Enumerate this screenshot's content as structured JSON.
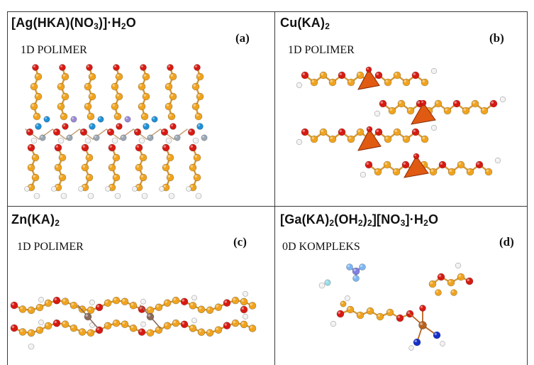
{
  "panels": [
    {
      "id": "a",
      "formula_parts": [
        "[Ag(HKA)(NO",
        "3",
        ")]·H",
        "2",
        "O"
      ],
      "dimensionality": "1D POLIMER",
      "tag": "(a)"
    },
    {
      "id": "b",
      "formula_parts": [
        "Cu(KA)",
        "2"
      ],
      "dimensionality": "1D POLIMER",
      "tag": "(b)"
    },
    {
      "id": "c",
      "formula_parts": [
        "Zn(KA)",
        "2"
      ],
      "dimensionality": "1D POLIMER",
      "tag": "(c)"
    },
    {
      "id": "d",
      "formula_parts": [
        "[Ga(KA)",
        "2",
        "(OH",
        "2",
        ")",
        "2",
        "][NO",
        "3",
        "]·H",
        "2",
        "O"
      ],
      "dimensionality": "0D KOMPLEKS",
      "tag": "(d)"
    }
  ],
  "colors": {
    "carbon": "#f0a31e",
    "oxygen": "#d81a12",
    "hydrogen": "#f2f2f2",
    "nitrogen_blue": "#1e90d8",
    "nitrogen_dark": "#1530c8",
    "silver": "#9aa7b5",
    "copper_polyhedron": "#e05a12",
    "zinc": "#8a6a5a",
    "gallium": "#b8621c",
    "frame": "#3a3a3a"
  }
}
